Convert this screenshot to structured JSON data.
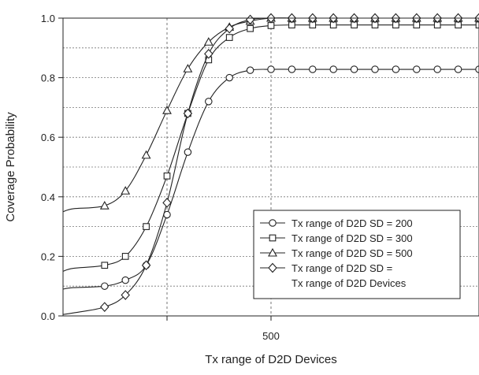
{
  "chart_data": {
    "type": "line",
    "title": "",
    "xlabel": "Tx range of D2D Devices",
    "ylabel": "Coverage Probability",
    "xlim": [
      0,
      1000
    ],
    "ylim": [
      0,
      1.0
    ],
    "x_ticks": [
      500
    ],
    "x_tick_labels": [
      "500"
    ],
    "x_gridlines": [
      250,
      500
    ],
    "y_ticks": [
      0.0,
      0.2,
      0.4,
      0.6,
      0.8,
      1.0
    ],
    "y_tick_labels": [
      "0.0",
      "0.2",
      "0.4",
      "0.6",
      "0.8",
      "1.0"
    ],
    "grid": true,
    "legend_position": "bottom-right",
    "series": [
      {
        "name": "Tx range of D2D SD = 200",
        "marker": "circle",
        "color": "#222222",
        "x": [
          0,
          25,
          100,
          150,
          200,
          250,
          300,
          350,
          400,
          450,
          500,
          550,
          600,
          650,
          700,
          750,
          800,
          850,
          900,
          950,
          1000
        ],
        "y": [
          0.09,
          0.095,
          0.1,
          0.12,
          0.17,
          0.34,
          0.55,
          0.72,
          0.8,
          0.825,
          0.828,
          0.828,
          0.828,
          0.828,
          0.828,
          0.828,
          0.828,
          0.828,
          0.828,
          0.828,
          0.828
        ]
      },
      {
        "name": "Tx range of D2D SD = 300",
        "marker": "square",
        "color": "#222222",
        "x": [
          0,
          25,
          100,
          150,
          200,
          250,
          300,
          350,
          400,
          450,
          500,
          550,
          600,
          650,
          700,
          750,
          800,
          850,
          900,
          950,
          1000
        ],
        "y": [
          0.15,
          0.16,
          0.17,
          0.2,
          0.3,
          0.47,
          0.68,
          0.86,
          0.935,
          0.965,
          0.975,
          0.977,
          0.977,
          0.977,
          0.977,
          0.977,
          0.977,
          0.977,
          0.977,
          0.977,
          0.977
        ]
      },
      {
        "name": "Tx range of D2D SD = 500",
        "marker": "triangle",
        "color": "#222222",
        "x": [
          0,
          25,
          100,
          150,
          200,
          250,
          300,
          350,
          400,
          450,
          500,
          550,
          600,
          650,
          700,
          750,
          800,
          850,
          900,
          950,
          1000
        ],
        "y": [
          0.35,
          0.36,
          0.37,
          0.42,
          0.54,
          0.69,
          0.83,
          0.92,
          0.97,
          0.99,
          1.0,
          1.0,
          1.0,
          1.0,
          1.0,
          1.0,
          1.0,
          1.0,
          1.0,
          1.0,
          1.0
        ]
      },
      {
        "name": "Tx range of D2D SD = Tx range of D2D Devices",
        "legend_lines": [
          "Tx range of D2D SD =",
          "Tx range of D2D Devices"
        ],
        "marker": "diamond",
        "color": "#222222",
        "x": [
          0,
          25,
          100,
          150,
          200,
          250,
          300,
          350,
          400,
          450,
          500,
          550,
          600,
          650,
          700,
          750,
          800,
          850,
          900,
          950,
          1000
        ],
        "y": [
          0.005,
          0.01,
          0.03,
          0.07,
          0.17,
          0.38,
          0.68,
          0.88,
          0.965,
          0.995,
          1.0,
          1.0,
          1.0,
          1.0,
          1.0,
          1.0,
          1.0,
          1.0,
          1.0,
          1.0,
          1.0
        ]
      }
    ]
  }
}
